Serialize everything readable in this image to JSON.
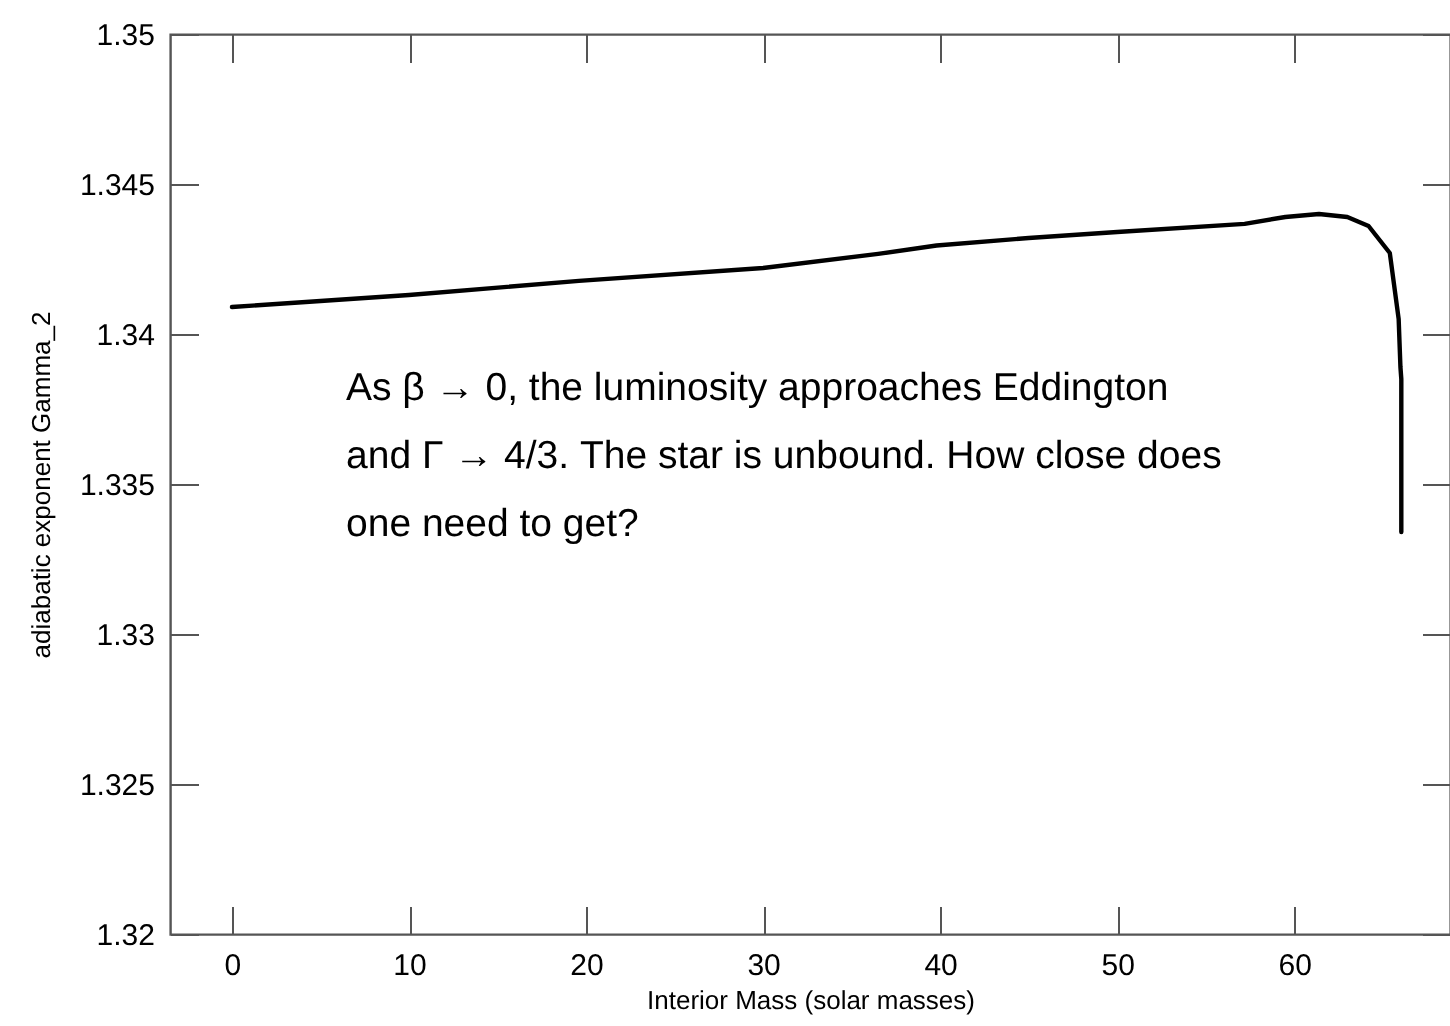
{
  "chart_data": {
    "type": "line",
    "xlabel": "Interior Mass (solar masses)",
    "ylabel": "adiabatic exponent Gamma_2",
    "annotations": [
      "As β → 0, the luminosity approaches Eddington\nand Γ → 4/3.  The star is unbound. How close does\none need to get?"
    ],
    "x": [
      0,
      5,
      10,
      19.6,
      30,
      36.5,
      39.8,
      45,
      50,
      57.2,
      59.5,
      61.4,
      63,
      64.2,
      65.4,
      65.9,
      66.0,
      66.05,
      66.05
    ],
    "series": [
      {
        "color": "#000000",
        "values": [
          1.3409,
          1.3411,
          1.3413,
          1.34177,
          1.3422,
          1.34267,
          1.34295,
          1.3432,
          1.3434,
          1.34367,
          1.3439,
          1.344,
          1.3439,
          1.3436,
          1.3427,
          1.3405,
          1.3389,
          1.3385,
          1.3334
        ]
      }
    ],
    "xlim": [
      -3.5,
      68.8
    ],
    "xticks": [
      0,
      10,
      20,
      30,
      40,
      50,
      60
    ],
    "ylim": [
      1.32,
      1.35
    ],
    "yticks": [
      1.32,
      1.325,
      1.33,
      1.335,
      1.34,
      1.345,
      1.35
    ],
    "grid": false,
    "marker": "none",
    "line_style": "solid"
  }
}
